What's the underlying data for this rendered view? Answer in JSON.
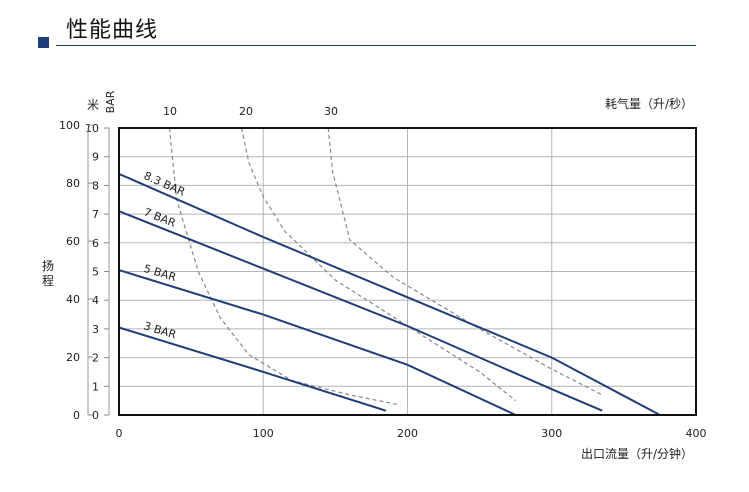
{
  "header": {
    "title": "性能曲线"
  },
  "chart_data": {
    "type": "line",
    "x_label": "出口流量（升/分钟）",
    "x_ticks": [
      0,
      100,
      200,
      300,
      400
    ],
    "xlim": [
      0,
      400
    ],
    "y_left_outer_label": "扬程",
    "y_left_outer_unit": "米",
    "y_left_outer_ticks": [
      0,
      20,
      40,
      60,
      80,
      100
    ],
    "y_left_inner_unit": "BAR",
    "y_left_inner_ticks": [
      0,
      1,
      2,
      3,
      4,
      5,
      6,
      7,
      8,
      9,
      10
    ],
    "ylim_bar": [
      0,
      10
    ],
    "top_axis_label": "耗气量（升/秒）",
    "top_axis_ticks": [
      10,
      20,
      30
    ],
    "grid": true,
    "pressure_series": [
      {
        "name": "8.3 BAR",
        "points": [
          [
            0,
            8.4
          ],
          [
            100,
            6.2
          ],
          [
            200,
            4.1
          ],
          [
            300,
            2.0
          ],
          [
            375,
            0
          ]
        ]
      },
      {
        "name": "7 BAR",
        "points": [
          [
            0,
            7.1
          ],
          [
            100,
            5.1
          ],
          [
            200,
            3.1
          ],
          [
            300,
            0.9
          ],
          [
            335,
            0.15
          ]
        ]
      },
      {
        "name": "5 BAR",
        "points": [
          [
            0,
            5.05
          ],
          [
            100,
            3.5
          ],
          [
            200,
            1.75
          ],
          [
            275,
            0
          ]
        ]
      },
      {
        "name": "3 BAR",
        "points": [
          [
            0,
            3.05
          ],
          [
            100,
            1.5
          ],
          [
            185,
            0.15
          ]
        ]
      }
    ],
    "air_consumption_series": [
      {
        "name": "10",
        "points": [
          [
            35,
            10
          ],
          [
            40,
            7.5
          ],
          [
            55,
            5.0
          ],
          [
            70,
            3.4
          ],
          [
            90,
            2.1
          ],
          [
            120,
            1.2
          ],
          [
            160,
            0.7
          ],
          [
            195,
            0.35
          ]
        ]
      },
      {
        "name": "20",
        "points": [
          [
            85,
            10
          ],
          [
            90,
            8.8
          ],
          [
            100,
            7.6
          ],
          [
            115,
            6.4
          ],
          [
            150,
            4.7
          ],
          [
            200,
            3.1
          ],
          [
            250,
            1.5
          ],
          [
            275,
            0.5
          ]
        ]
      },
      {
        "name": "30",
        "points": [
          [
            145,
            10
          ],
          [
            148,
            8.5
          ],
          [
            160,
            6.1
          ],
          [
            190,
            4.8
          ],
          [
            250,
            3.0
          ],
          [
            300,
            1.6
          ],
          [
            335,
            0.7
          ]
        ]
      }
    ]
  }
}
